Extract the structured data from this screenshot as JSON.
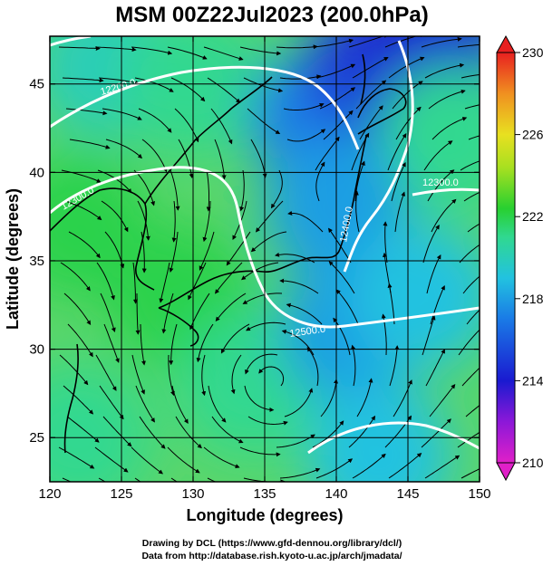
{
  "chart_data": {
    "type": "heatmap",
    "title": "MSM 00Z22Jul2023 (200.0hPa)",
    "xlabel": "Longitude (degrees)",
    "ylabel": "Latitude  (degrees)",
    "xlim": [
      120,
      150
    ],
    "ylim": [
      22.5,
      47.7
    ],
    "x_ticks": [
      120,
      125,
      130,
      135,
      140,
      145,
      150
    ],
    "y_ticks": [
      25,
      30,
      35,
      40,
      45
    ],
    "grid": true,
    "colorbar": {
      "range": [
        210,
        230
      ],
      "ticks": [
        210,
        214,
        218,
        222,
        226,
        230
      ]
    },
    "temperature_field_estimates": [
      {
        "lon": 124,
        "lat": 46,
        "value": 220
      },
      {
        "lon": 130,
        "lat": 45,
        "value": 221
      },
      {
        "lon": 139,
        "lat": 43,
        "value": 217
      },
      {
        "lon": 143,
        "lat": 46,
        "value": 215
      },
      {
        "lon": 147,
        "lat": 47,
        "value": 214
      },
      {
        "lon": 148,
        "lat": 42,
        "value": 221
      },
      {
        "lon": 140,
        "lat": 38,
        "value": 218
      },
      {
        "lon": 122,
        "lat": 37,
        "value": 222
      },
      {
        "lon": 129,
        "lat": 33,
        "value": 222
      },
      {
        "lon": 134,
        "lat": 28,
        "value": 221
      },
      {
        "lon": 141,
        "lat": 31,
        "value": 218
      },
      {
        "lon": 146,
        "lat": 33,
        "value": 219
      },
      {
        "lon": 122,
        "lat": 25,
        "value": 221
      },
      {
        "lon": 143,
        "lat": 24,
        "value": 219
      }
    ],
    "contour_labels": [
      "12200.0",
      "12300.0",
      "12300.0",
      "12400.0",
      "12500.0"
    ],
    "credits": [
      "Drawing by DCL (https://www.gfd-dennou.org/library/dcl/)",
      "Data from http://database.rish.kyoto-u.ac.jp/arch/jmadata/"
    ]
  }
}
